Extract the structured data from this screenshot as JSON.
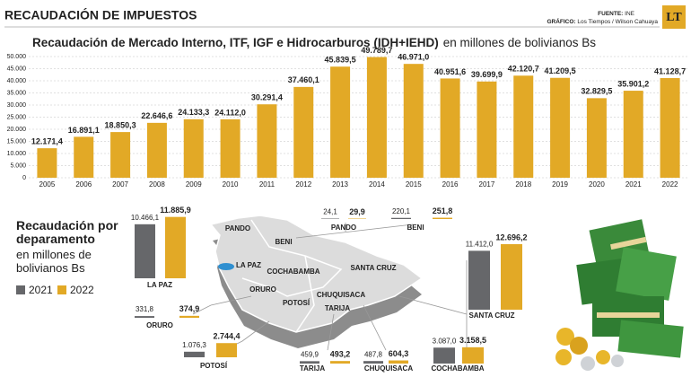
{
  "header": {
    "title": "RECAUDACIÓN DE IMPUESTOS",
    "source_label": "FUENTE:",
    "source": "INE",
    "credit_label": "GRÁFICO:",
    "credit": "Los Tiempos / Wilson Cahuaya",
    "logo": "LT"
  },
  "chart_data": [
    {
      "type": "bar",
      "title": "Recaudación de Mercado Interno, ITF, IGF e Hidrocarburos (IDH+IEHD)",
      "subtitle": "en millones de bolivianos Bs",
      "categories": [
        "2005",
        "2006",
        "2007",
        "2008",
        "2009",
        "2010",
        "2011",
        "2012",
        "2013",
        "2014",
        "2015",
        "2016",
        "2017",
        "2018",
        "2019",
        "2020",
        "2021",
        "2022"
      ],
      "values": [
        12171.4,
        16891.1,
        18850.3,
        22646.6,
        24133.3,
        24112.0,
        30291.4,
        37460.1,
        45839.5,
        49789.7,
        46971.0,
        40951.6,
        39699.9,
        42120.7,
        41209.5,
        32829.5,
        35901.2,
        41128.7
      ],
      "value_labels": [
        "12.171,4",
        "16.891,1",
        "18.850,3",
        "22.646,6",
        "24.133,3",
        "24.112,0",
        "30.291,4",
        "37.460,1",
        "45.839,5",
        "49.789,7",
        "46.971,0",
        "40.951,6",
        "39.699,9",
        "42.120,7",
        "41.209,5",
        "32.829,5",
        "35.901,2",
        "41.128,7"
      ],
      "color": "#e2a926",
      "ylim": [
        0,
        50000
      ],
      "yticks": [
        {
          "value": 0,
          "label": "0"
        },
        {
          "value": 5000,
          "label": "5.000"
        },
        {
          "value": 10000,
          "label": "10.000"
        },
        {
          "value": 15000,
          "label": "15.000"
        },
        {
          "value": 20000,
          "label": "20.000"
        },
        {
          "value": 25000,
          "label": "25.000"
        },
        {
          "value": 30000,
          "label": "30.000"
        },
        {
          "value": 35000,
          "label": "35.000"
        },
        {
          "value": 40000,
          "label": "40.000"
        },
        {
          "value": 45000,
          "label": "45.000"
        },
        {
          "value": 50000,
          "label": "50.000"
        }
      ],
      "grid": true
    },
    {
      "type": "bar",
      "title": "Recaudación por deparamento",
      "subtitle": "en millones de bolivianos Bs",
      "categories": [
        "LA PAZ",
        "PANDO",
        "BENI",
        "ORURO",
        "POTOSÍ",
        "TARIJA",
        "CHUQUISACA",
        "COCHABAMBA",
        "SANTA CRUZ"
      ],
      "series": [
        {
          "name": "2021",
          "color": "#66676a",
          "values": [
            10466.1,
            24.1,
            220.1,
            331.8,
            1076.3,
            459.9,
            487.8,
            3087.0,
            11412.0
          ],
          "value_labels": [
            "10.466,1",
            "24,1",
            "220,1",
            "331,8",
            "1.076,3",
            "459,9",
            "487,8",
            "3.087,0",
            "11.412,0"
          ]
        },
        {
          "name": "2022",
          "color": "#e2a926",
          "values": [
            11885.9,
            29.9,
            251.8,
            374.9,
            2744.4,
            493.2,
            604.3,
            3158.5,
            12696.2
          ],
          "value_labels": [
            "11.885,9",
            "29,9",
            "251,8",
            "374,9",
            "2.744,4",
            "493,2",
            "604,3",
            "3.158,5",
            "12.696,2"
          ]
        }
      ]
    }
  ]
}
